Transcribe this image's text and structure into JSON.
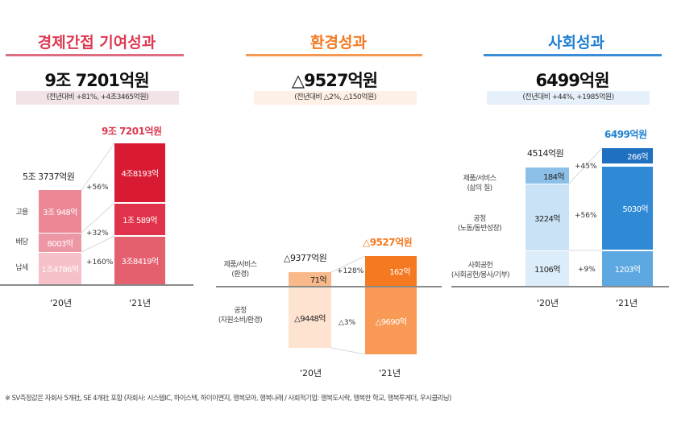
{
  "colors": {
    "economic": "#dd3a52",
    "environment": "#f47920",
    "social": "#1f7fd0"
  },
  "panels": {
    "economic": {
      "title": "경제간접 기여성과",
      "total": "9조 7201억원",
      "change": "(전년대비 +81%,   +4조3465억원)"
    },
    "environment": {
      "title": "환경성과",
      "total": "△9527억원",
      "change": "(전년대비 △2%,   △150억원)"
    },
    "social": {
      "title": "사회성과",
      "total": "6499억원",
      "change": "(전년대비 +44%,   +1985억원)"
    }
  },
  "chart_data": [
    {
      "type": "bar",
      "stacked": true,
      "categories": [
        "'20년",
        "'21년"
      ],
      "totals": [
        "5조 3737억원",
        "9조 7201억원"
      ],
      "series": [
        {
          "name": "고용",
          "values": [
            30948,
            48193
          ],
          "labels": [
            "3조 948억",
            "4조8193억"
          ],
          "change": "+56%"
        },
        {
          "name": "배당",
          "values": [
            8003,
            10589
          ],
          "labels": [
            "8003억",
            "1조 589억"
          ],
          "change": "+32%"
        },
        {
          "name": "납세",
          "values": [
            14786,
            38419
          ],
          "labels": [
            "1조4786억",
            "3조8419억"
          ],
          "change": "+160%"
        }
      ]
    },
    {
      "type": "bar",
      "stacked": true,
      "categories": [
        "'20년",
        "'21년"
      ],
      "totals": [
        "△9377억원",
        "△9527억원"
      ],
      "series": [
        {
          "name": "제품/서비스",
          "sub": "(환경)",
          "values": [
            71,
            162
          ],
          "labels": [
            "71억",
            "162억"
          ],
          "change": "+128%"
        },
        {
          "name": "공정",
          "sub": "(자원소비/환경)",
          "values": [
            -9448,
            -9690
          ],
          "labels": [
            "△9448억",
            "△9690억"
          ],
          "change": "△3%"
        }
      ]
    },
    {
      "type": "bar",
      "stacked": true,
      "categories": [
        "'20년",
        "'21년"
      ],
      "totals": [
        "4514억원",
        "6499억원"
      ],
      "series": [
        {
          "name": "제품/서비스",
          "sub": "(삶의 질)",
          "values": [
            184,
            266
          ],
          "labels": [
            "184억",
            "266억"
          ],
          "change": "+45%"
        },
        {
          "name": "공정",
          "sub": "(노동/동반성장)",
          "values": [
            3224,
            5030
          ],
          "labels": [
            "3224억",
            "5030억"
          ],
          "change": "+56%"
        },
        {
          "name": "사회공헌",
          "sub": "(사회공헌/봉사/기부)",
          "values": [
            1106,
            1203
          ],
          "labels": [
            "1106억",
            "1203억"
          ],
          "change": "+9%"
        }
      ]
    }
  ],
  "footnote": "※  SV측정값은 자회사 5개社, SE 4개社 포함 (자회사: 시스템IC, 하이스텍, 하이이엔지, 행복모아, 행복나래 / 사회적기업: 행복도시락, 행복한 학교, 행복투게더, 우시클리닝)"
}
